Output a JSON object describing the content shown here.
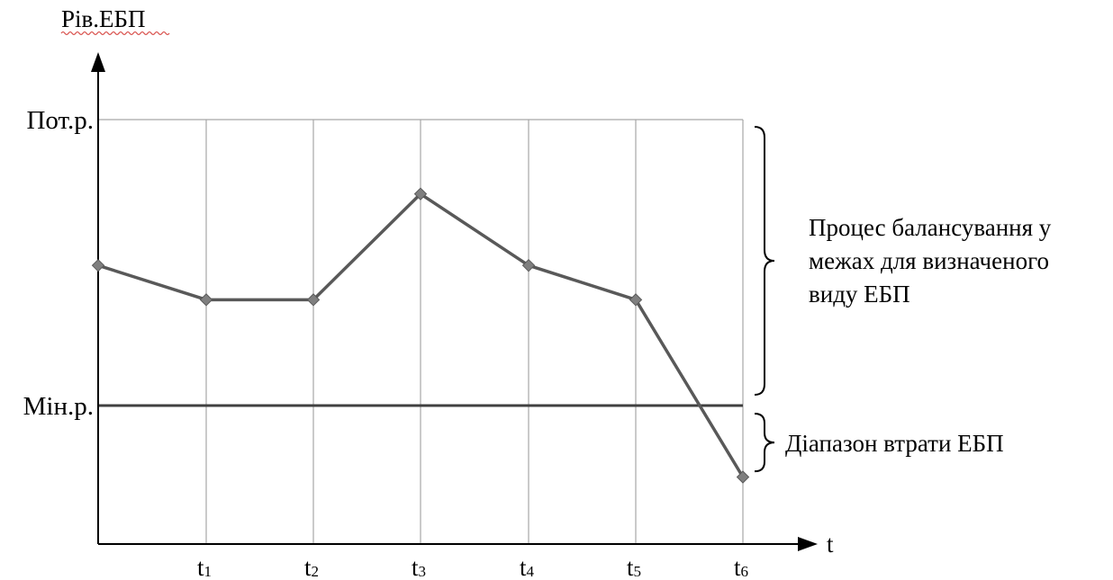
{
  "chart_data": {
    "type": "line",
    "ylabel": "Рів.ЕБП",
    "xlabel": "t",
    "y_levels": [
      {
        "label": "Пот.р.",
        "value": 1.0
      },
      {
        "label": "Мін.р.",
        "value": 0.0
      }
    ],
    "x": [
      "",
      "t1",
      "t2",
      "t3",
      "t4",
      "t5",
      "t6"
    ],
    "x_ticks": [
      {
        "base": "t",
        "sub": "1"
      },
      {
        "base": "t",
        "sub": "2"
      },
      {
        "base": "t",
        "sub": "3"
      },
      {
        "base": "t",
        "sub": "4"
      },
      {
        "base": "t",
        "sub": "5"
      },
      {
        "base": "t",
        "sub": "6"
      }
    ],
    "series": [
      {
        "values": [
          0.49,
          0.37,
          0.37,
          0.74,
          0.49,
          0.37,
          -0.25
        ]
      }
    ],
    "ylim": [
      -0.47,
      1.0
    ],
    "grid": true,
    "annotations": [
      {
        "kind": "brace",
        "from": 0.0,
        "to": 1.0,
        "lines": [
          "Процес балансування у",
          "межах для визначеного",
          "виду ЕБП"
        ]
      },
      {
        "kind": "brace",
        "from": -0.23,
        "to": 0.0,
        "lines": [
          "Діапазон втрати ЕБП"
        ]
      }
    ],
    "colors": {
      "line": "#595959",
      "marker": "#7f7f7f",
      "grid": "#a6a6a6",
      "axis": "#000000",
      "min_level_line": "#404040",
      "underline": "#d9534f"
    }
  }
}
